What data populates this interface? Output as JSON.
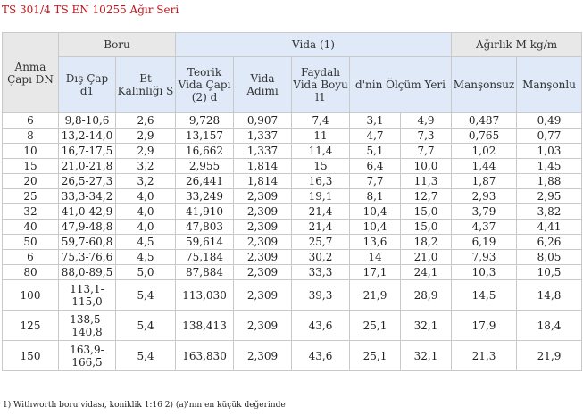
{
  "title": "TS 301/4 TS EN 10255 Ağır Seri",
  "headers": {
    "dn": "Anma Çapı DN",
    "boru": "Boru",
    "vida": "Vida (1)",
    "agirlik": "Ağırlık M kg/m",
    "dis_cap": "Dış Çap d1",
    "et": "Et Kalınlığı S",
    "teorik": "Teorik Vida Çapı (2) d",
    "adim": "Vida Adımı",
    "faydali": "Faydalı Vida Boyu l1",
    "olcum": "d'nin Ölçüm Yeri",
    "mansonsuz": "Manşonsuz",
    "mansonlu": "Manşonlu"
  },
  "rows": [
    [
      "6",
      "9,8-10,6",
      "2,6",
      "9,728",
      "0,907",
      "7,4",
      "3,1",
      "4,9",
      "0,487",
      "0,49"
    ],
    [
      "8",
      "13,2-14,0",
      "2,9",
      "13,157",
      "1,337",
      "11",
      "4,7",
      "7,3",
      "0,765",
      "0,77"
    ],
    [
      "10",
      "16,7-17,5",
      "2,9",
      "16,662",
      "1,337",
      "11,4",
      "5,1",
      "7,7",
      "1,02",
      "1,03"
    ],
    [
      "15",
      "21,0-21,8",
      "3,2",
      "2,955",
      "1,814",
      "15",
      "6,4",
      "10,0",
      "1,44",
      "1,45"
    ],
    [
      "20",
      "26,5-27,3",
      "3,2",
      "26,441",
      "1,814",
      "16,3",
      "7,7",
      "11,3",
      "1,87",
      "1,88"
    ],
    [
      "25",
      "33,3-34,2",
      "4,0",
      "33,249",
      "2,309",
      "19,1",
      "8,1",
      "12,7",
      "2,93",
      "2,95"
    ],
    [
      "32",
      "41,0-42,9",
      "4,0",
      "41,910",
      "2,309",
      "21,4",
      "10,4",
      "15,0",
      "3,79",
      "3,82"
    ],
    [
      "40",
      "47,9-48,8",
      "4,0",
      "47,803",
      "2,309",
      "21,4",
      "10,4",
      "15,0",
      "4,37",
      "4,41"
    ],
    [
      "50",
      "59,7-60,8",
      "4,5",
      "59,614",
      "2,309",
      "25,7",
      "13,6",
      "18,2",
      "6,19",
      "6,26"
    ],
    [
      "6",
      "75,3-76,6",
      "4,5",
      "75,184",
      "2,309",
      "30,2",
      "14",
      "21,0",
      "7,93",
      "8,05"
    ],
    [
      "80",
      "88,0-89,5",
      "5,0",
      "87,884",
      "2,309",
      "33,3",
      "17,1",
      "24,1",
      "10,3",
      "10,5"
    ],
    [
      "100",
      "113,1-115,0",
      "5,4",
      "113,030",
      "2,309",
      "39,3",
      "21,9",
      "28,9",
      "14,5",
      "14,8"
    ],
    [
      "125",
      "138,5-140,8",
      "5,4",
      "138,413",
      "2,309",
      "43,6",
      "25,1",
      "32,1",
      "17,9",
      "18,4"
    ],
    [
      "150",
      "163,9-166,5",
      "5,4",
      "163,830",
      "2,309",
      "43,6",
      "25,1",
      "32,1",
      "21,3",
      "21,9"
    ]
  ],
  "footnote": "1) Withworth boru vidası, koniklik 1:16 2) (a)'nın en küçük değerinde"
}
